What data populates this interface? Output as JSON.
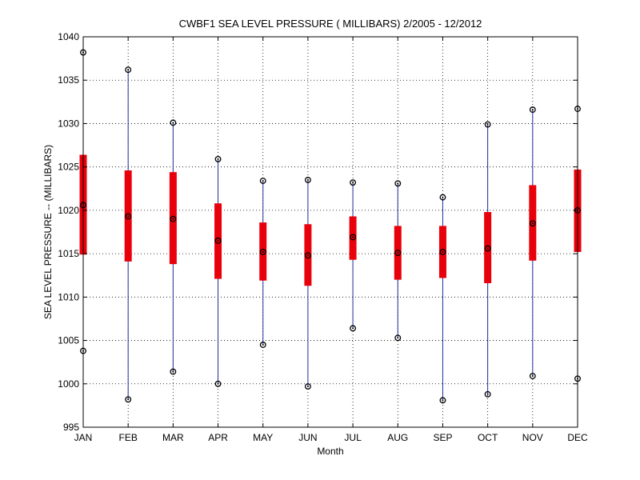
{
  "chart_data": {
    "type": "boxplot",
    "title": "CWBF1  SEA LEVEL PRESSURE ( MILLIBARS) 2/2005 - 12/2012",
    "xlabel": "Month",
    "ylabel": "SEA LEVEL PRESSURE -- (MILLIBARS)",
    "ylim": [
      995,
      1040
    ],
    "yticks": [
      995,
      1000,
      1005,
      1010,
      1015,
      1020,
      1025,
      1030,
      1035,
      1040
    ],
    "grid": true,
    "categories": [
      "JAN",
      "FEB",
      "MAR",
      "APR",
      "MAY",
      "JUN",
      "JUL",
      "AUG",
      "SEP",
      "OCT",
      "NOV",
      "DEC"
    ],
    "series": [
      {
        "name": "min",
        "values": [
          1003.8,
          998.2,
          1001.4,
          1000.0,
          1004.5,
          999.7,
          1006.4,
          1005.3,
          998.1,
          998.8,
          1000.9,
          1000.6
        ]
      },
      {
        "name": "q1",
        "values": [
          1014.9,
          1014.1,
          1013.8,
          1012.1,
          1011.9,
          1011.3,
          1014.3,
          1012.0,
          1012.2,
          1011.6,
          1014.2,
          1015.2
        ]
      },
      {
        "name": "median",
        "values": [
          1020.6,
          1019.3,
          1019.0,
          1016.5,
          1015.2,
          1014.8,
          1016.9,
          1015.1,
          1015.2,
          1015.6,
          1018.5,
          1020.0
        ]
      },
      {
        "name": "q3",
        "values": [
          1026.4,
          1024.6,
          1024.4,
          1020.8,
          1018.6,
          1018.4,
          1019.3,
          1018.2,
          1018.2,
          1019.8,
          1022.9,
          1024.7
        ]
      },
      {
        "name": "max",
        "values": [
          1038.2,
          1036.2,
          1030.1,
          1025.9,
          1023.4,
          1023.5,
          1023.2,
          1023.1,
          1021.5,
          1029.9,
          1031.6,
          1031.7
        ]
      }
    ],
    "colors": {
      "box": "#e8000b",
      "whisker": "#1f2f9e",
      "marker": "#000000",
      "grid": "#000000"
    }
  }
}
